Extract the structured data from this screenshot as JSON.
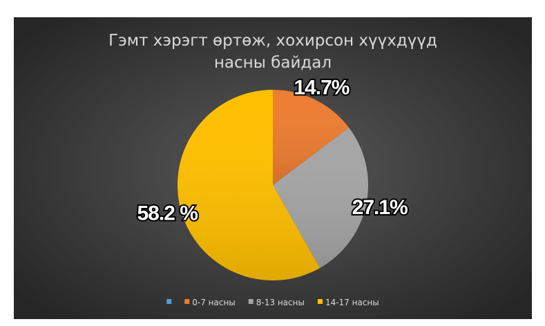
{
  "chart_data": {
    "type": "pie",
    "title": "Гэмт хэрэгт өртөж, хохирсон хүүхдүүд насны байдал",
    "categories": [
      null,
      "0-7 насны",
      "8-13 насны",
      "14-17 насны"
    ],
    "values": [
      0,
      14.7,
      27.1,
      58.2
    ],
    "value_labels": [
      null,
      "14.7%",
      "27.1%",
      "58.2 %"
    ],
    "colors": [
      "#5b9bd5",
      "#ed7d31",
      "#a5a5a5",
      "#ffc000"
    ],
    "legend": "bottom"
  }
}
